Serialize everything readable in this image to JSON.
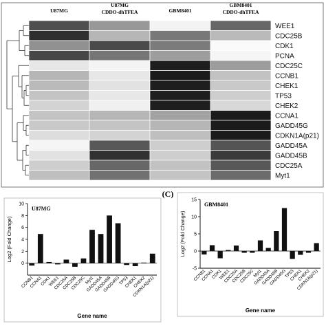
{
  "panel_c_label": "(C)",
  "chart_data": [
    {
      "type": "heatmap",
      "title": "",
      "columns": [
        "U87MG",
        "U87MG CDDO-dhTFEA",
        "GBM8401",
        "GBM8401 CDDO-dhTFEA"
      ],
      "column_label_lines": [
        [
          "U87MG"
        ],
        [
          "U87MG",
          "CDDO-dhTFEA"
        ],
        [
          "GBM8401"
        ],
        [
          "GBM8401",
          "CDDO-dhTFEA"
        ]
      ],
      "rows": [
        "WEE1",
        "CDC25B",
        "CDK1",
        "PCNA",
        "CDC25C",
        "CCNB1",
        "CHEK1",
        "TP53",
        "CHEK2",
        "CCNA1",
        "GADD45G",
        "CDKN1A(p21)",
        "GADD45A",
        "GADD45B",
        "CDC25A",
        "Myt1"
      ],
      "color_scale": "grayscale (white = low, black = high)",
      "intensity": [
        [
          0.72,
          0.42,
          0.05,
          0.62
        ],
        [
          0.85,
          0.3,
          0.55,
          0.28
        ],
        [
          0.45,
          0.74,
          0.54,
          0.02
        ],
        [
          0.75,
          0.56,
          0.4,
          0.04
        ],
        [
          0.1,
          0.05,
          0.92,
          0.4
        ],
        [
          0.3,
          0.1,
          0.93,
          0.25
        ],
        [
          0.28,
          0.12,
          0.92,
          0.22
        ],
        [
          0.24,
          0.1,
          0.92,
          0.2
        ],
        [
          0.18,
          0.06,
          0.92,
          0.16
        ],
        [
          0.24,
          0.3,
          0.38,
          0.93
        ],
        [
          0.22,
          0.24,
          0.3,
          0.93
        ],
        [
          0.14,
          0.18,
          0.26,
          0.93
        ],
        [
          0.04,
          0.68,
          0.2,
          0.7
        ],
        [
          0.12,
          0.84,
          0.2,
          0.8
        ],
        [
          0.2,
          0.62,
          0.25,
          0.68
        ],
        [
          0.26,
          0.58,
          0.24,
          0.6
        ]
      ],
      "dendrogram": "rows clustered, left side"
    },
    {
      "type": "bar",
      "title": "U87MG",
      "categories": [
        "CCNB1",
        "CCNA1",
        "CDK1",
        "WEE1",
        "CDC25A",
        "CDC25B",
        "CDC25C",
        "Myt1",
        "GADD45A",
        "GADD45B",
        "GADD45G",
        "TP53",
        "CHEK1",
        "CHEK2",
        "CDKN1A(p21)"
      ],
      "values": [
        -0.4,
        4.9,
        0.2,
        -0.2,
        0.6,
        -0.6,
        0.8,
        5.6,
        4.9,
        8.0,
        6.7,
        -0.3,
        -0.5,
        0.1,
        1.6
      ],
      "xlabel": "Gene name",
      "ylabel": "Log2 (Fold Change)",
      "ylim": [
        -2,
        10
      ],
      "yticks": [
        0,
        2,
        4,
        6,
        8,
        10
      ],
      "grid": false
    },
    {
      "type": "bar",
      "title": "GBM8401",
      "categories": [
        "CCNB1",
        "CCNA1",
        "CDK1",
        "WEE1",
        "CDC25A",
        "CDC25B",
        "CDC25C",
        "Myt1",
        "GADD45A",
        "GADD45B",
        "GADD45G",
        "TP53",
        "CHEK1",
        "CHEK2",
        "CDKN1A(p21)"
      ],
      "values": [
        -1.0,
        1.7,
        -2.1,
        0.3,
        1.6,
        -0.5,
        -0.5,
        3.1,
        0.9,
        5.8,
        12.5,
        -2.3,
        -1.1,
        -0.5,
        2.3
      ],
      "xlabel": "Gene name",
      "ylabel": "Log2 (Fold Change)",
      "ylim": [
        -5,
        15
      ],
      "yticks": [
        -5,
        0,
        5,
        10,
        15
      ],
      "grid": false
    }
  ]
}
